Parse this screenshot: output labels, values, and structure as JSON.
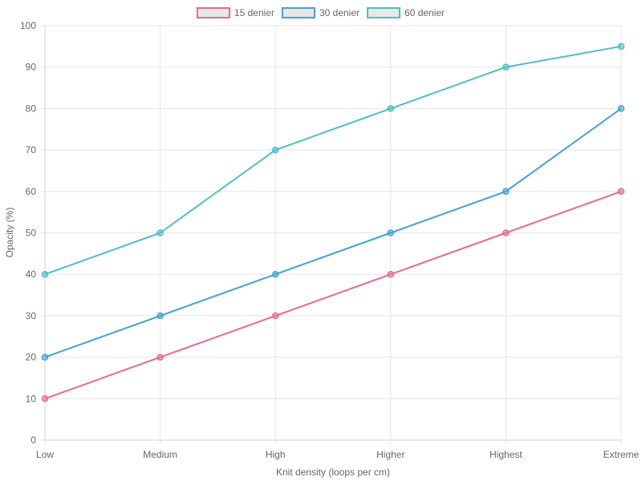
{
  "chart_data": {
    "type": "line",
    "categories": [
      "Low",
      "Medium",
      "High",
      "Higher",
      "Highest",
      "Extreme"
    ],
    "series": [
      {
        "name": "15 denier",
        "color": "#ff6384",
        "line_color": "#e8698f",
        "values": [
          10,
          20,
          30,
          40,
          50,
          60
        ]
      },
      {
        "name": "30 denier",
        "color": "#36a2eb",
        "line_color": "#3fa2d8",
        "values": [
          20,
          30,
          40,
          50,
          60,
          80
        ]
      },
      {
        "name": "60 denier",
        "color": "#4bc0c0",
        "line_color": "#4bc0c0",
        "values": [
          40,
          50,
          70,
          80,
          90,
          95
        ]
      }
    ],
    "xlabel": "Knit density (loops per cm)",
    "ylabel": "Opacity (%)",
    "ylim": [
      0,
      100
    ],
    "yticks": [
      "0",
      "10",
      "20",
      "30",
      "40",
      "50",
      "60",
      "70",
      "80",
      "90",
      "100"
    ],
    "grid": true,
    "legend_position": "top-center",
    "legend_fill": "#e8e8e8",
    "grid_color": "#e5e5e5",
    "text_color": "#666666"
  }
}
